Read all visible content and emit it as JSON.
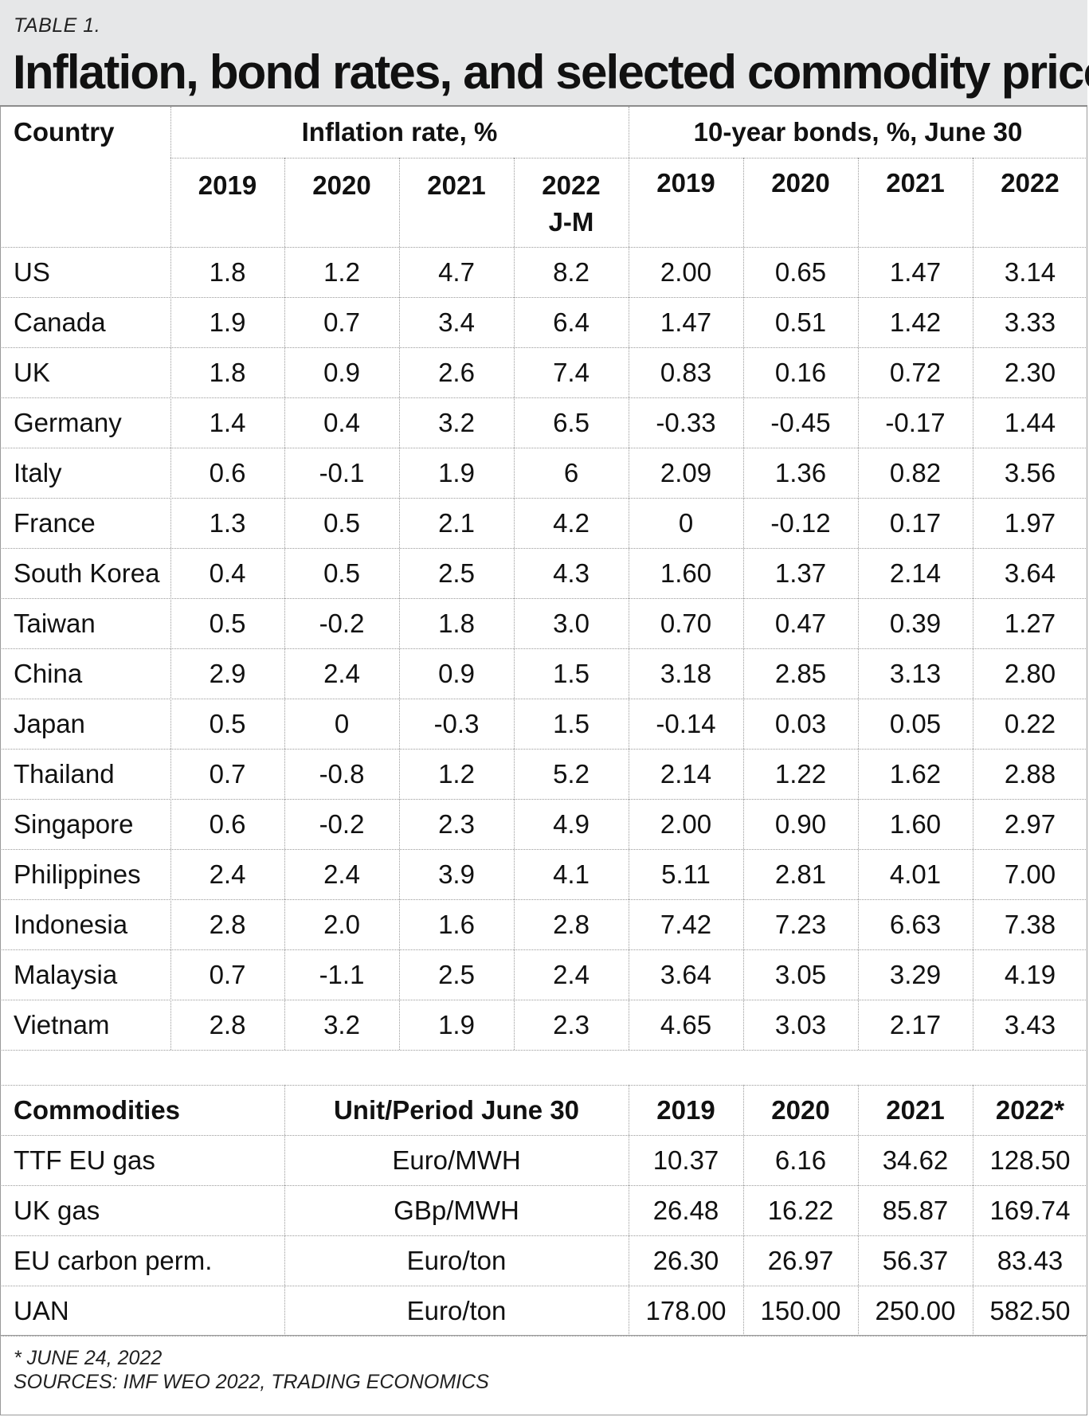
{
  "label": "TABLE 1.",
  "title": "Inflation, bond rates, and selected commodity prices",
  "table1": {
    "country_header": "Country",
    "group_inflation": "Inflation rate, %",
    "group_bonds": "10-year bonds, %, June 30",
    "inflation_years": [
      "2019",
      "2020",
      "2021",
      "2022\nJ-M"
    ],
    "bond_years": [
      "2019",
      "2020",
      "2021",
      "2022"
    ],
    "rows": [
      {
        "country": "US",
        "values": [
          "1.8",
          "1.2",
          "4.7",
          "8.2",
          "2.00",
          "0.65",
          "1.47",
          "3.14"
        ]
      },
      {
        "country": "Canada",
        "values": [
          "1.9",
          "0.7",
          "3.4",
          "6.4",
          "1.47",
          "0.51",
          "1.42",
          "3.33"
        ]
      },
      {
        "country": "UK",
        "values": [
          "1.8",
          "0.9",
          "2.6",
          "7.4",
          "0.83",
          "0.16",
          "0.72",
          "2.30"
        ]
      },
      {
        "country": "Germany",
        "values": [
          "1.4",
          "0.4",
          "3.2",
          "6.5",
          "-0.33",
          "-0.45",
          "-0.17",
          "1.44"
        ]
      },
      {
        "country": "Italy",
        "values": [
          "0.6",
          "-0.1",
          "1.9",
          "6",
          "2.09",
          "1.36",
          "0.82",
          "3.56"
        ]
      },
      {
        "country": "France",
        "values": [
          "1.3",
          "0.5",
          "2.1",
          "4.2",
          "0",
          "-0.12",
          "0.17",
          "1.97"
        ]
      },
      {
        "country": "South Korea",
        "values": [
          "0.4",
          "0.5",
          "2.5",
          "4.3",
          "1.60",
          "1.37",
          "2.14",
          "3.64"
        ]
      },
      {
        "country": "Taiwan",
        "values": [
          "0.5",
          "-0.2",
          "1.8",
          "3.0",
          "0.70",
          "0.47",
          "0.39",
          "1.27"
        ]
      },
      {
        "country": "China",
        "values": [
          "2.9",
          "2.4",
          "0.9",
          "1.5",
          "3.18",
          "2.85",
          "3.13",
          "2.80"
        ]
      },
      {
        "country": "Japan",
        "values": [
          "0.5",
          "0",
          "-0.3",
          "1.5",
          "-0.14",
          "0.03",
          "0.05",
          "0.22"
        ]
      },
      {
        "country": "Thailand",
        "values": [
          "0.7",
          "-0.8",
          "1.2",
          "5.2",
          "2.14",
          "1.22",
          "1.62",
          "2.88"
        ]
      },
      {
        "country": "Singapore",
        "values": [
          "0.6",
          "-0.2",
          "2.3",
          "4.9",
          "2.00",
          "0.90",
          "1.60",
          "2.97"
        ]
      },
      {
        "country": "Philippines",
        "values": [
          "2.4",
          "2.4",
          "3.9",
          "4.1",
          "5.11",
          "2.81",
          "4.01",
          "7.00"
        ]
      },
      {
        "country": "Indonesia",
        "values": [
          "2.8",
          "2.0",
          "1.6",
          "2.8",
          "7.42",
          "7.23",
          "6.63",
          "7.38"
        ]
      },
      {
        "country": "Malaysia",
        "values": [
          "0.7",
          "-1.1",
          "2.5",
          "2.4",
          "3.64",
          "3.05",
          "3.29",
          "4.19"
        ]
      },
      {
        "country": "Vietnam",
        "values": [
          "2.8",
          "3.2",
          "1.9",
          "2.3",
          "4.65",
          "3.03",
          "2.17",
          "3.43"
        ]
      }
    ]
  },
  "table2": {
    "commodity_header": "Commodities",
    "unit_header": "Unit/Period June 30",
    "years": [
      "2019",
      "2020",
      "2021",
      "2022*"
    ],
    "rows": [
      {
        "name": "TTF EU gas",
        "unit": "Euro/MWH",
        "values": [
          "10.37",
          "6.16",
          "34.62",
          "128.50"
        ]
      },
      {
        "name": "UK gas",
        "unit": "GBp/MWH",
        "values": [
          "26.48",
          "16.22",
          "85.87",
          "169.74"
        ]
      },
      {
        "name": "EU carbon perm.",
        "unit": "Euro/ton",
        "values": [
          "26.30",
          "26.97",
          "56.37",
          "83.43"
        ]
      },
      {
        "name": "UAN",
        "unit": "Euro/ton",
        "values": [
          "178.00",
          "150.00",
          "250.00",
          "582.50"
        ]
      }
    ]
  },
  "footnotes": [
    "* JUNE 24, 2022",
    "SOURCES: IMF WEO 2022, TRADING ECONOMICS"
  ]
}
